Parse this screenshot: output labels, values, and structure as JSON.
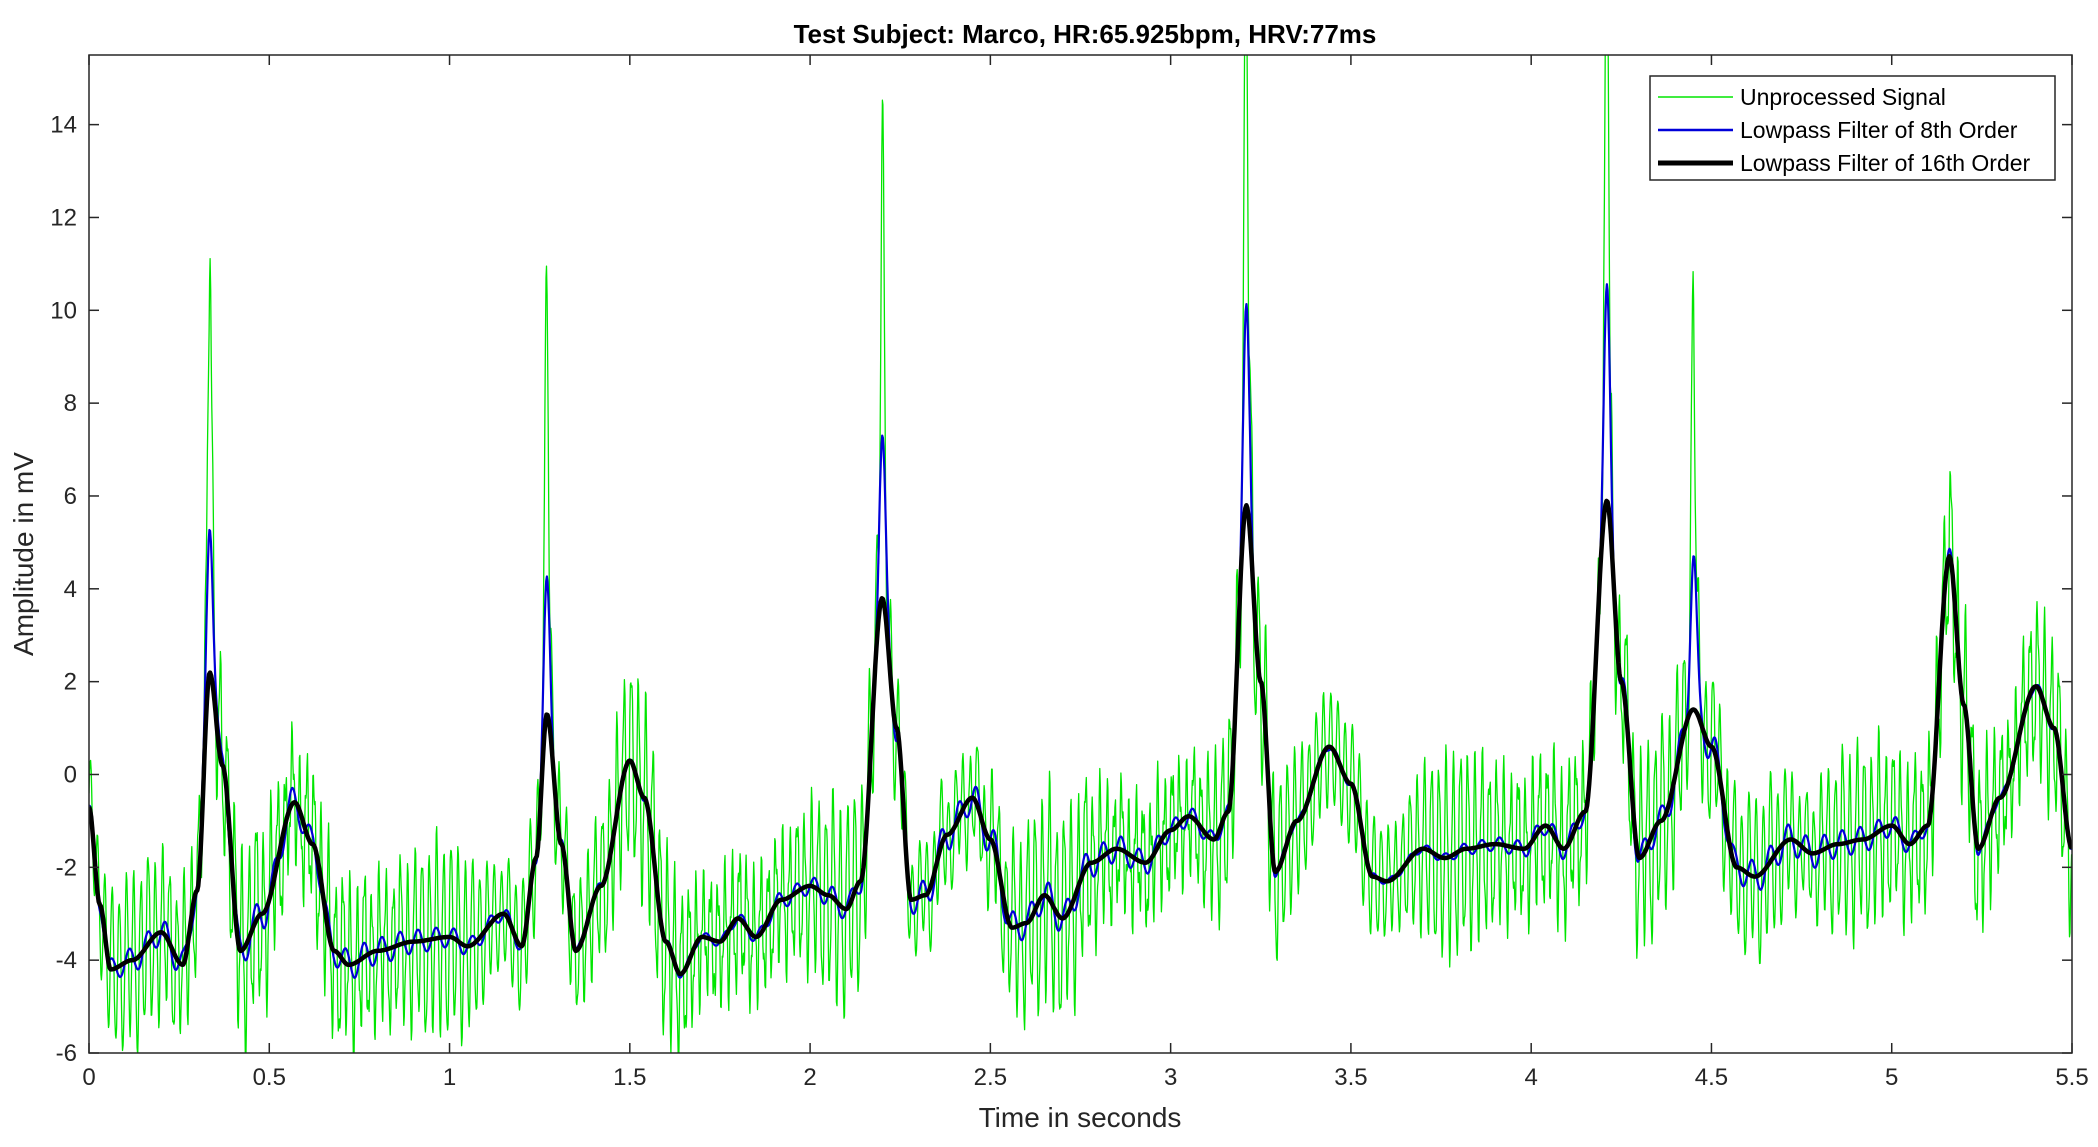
{
  "chart_data": {
    "type": "line",
    "title": "Test Subject: Marco, HR:65.925bpm, HRV:77ms",
    "xlabel": "Time in seconds",
    "ylabel": "Amplitude in mV",
    "xlim": [
      0,
      5.5
    ],
    "ylim": [
      -6,
      15.5
    ],
    "xticks": [
      0,
      0.5,
      1,
      1.5,
      2,
      2.5,
      3,
      3.5,
      4,
      4.5,
      5,
      5.5
    ],
    "xtick_labels": [
      "0",
      "0.5",
      "1",
      "1.5",
      "2",
      "2.5",
      "3",
      "3.5",
      "4",
      "4.5",
      "5",
      "5.5"
    ],
    "yticks": [
      -6,
      -4,
      -2,
      0,
      2,
      4,
      6,
      8,
      10,
      12,
      14
    ],
    "ytick_labels": [
      "-6",
      "-4",
      "-2",
      "0",
      "2",
      "4",
      "6",
      "8",
      "10",
      "12",
      "14"
    ],
    "grid": false,
    "legend_position": "top-right",
    "series": [
      {
        "name": "Unprocessed Signal",
        "color": "#00e600",
        "style": "thin",
        "noise_amplitude_mV": 1.8,
        "noise_frequency_hz": 50,
        "r_peak_extra_mV": [
          7.0,
          6.9,
          6.4,
          8.0,
          9.6,
          6.1
        ]
      },
      {
        "name": "Lowpass Filter of 8th Order",
        "color": "#0000d9",
        "style": "medium",
        "r_peak_extra_mV": [
          3.4,
          2.9,
          3.5,
          4.2,
          4.4,
          3.3
        ],
        "ripple_amplitude_mV": 0.35,
        "ripple_frequency_hz": 20
      },
      {
        "name": "Lowpass Filter of 16th Order",
        "color": "#000000",
        "style": "thick",
        "points": [
          [
            0.0,
            -0.7
          ],
          [
            0.03,
            -2.8
          ],
          [
            0.06,
            -4.2
          ],
          [
            0.12,
            -4.0
          ],
          [
            0.2,
            -3.4
          ],
          [
            0.26,
            -4.1
          ],
          [
            0.3,
            -2.5
          ],
          [
            0.335,
            2.2
          ],
          [
            0.37,
            0.2
          ],
          [
            0.42,
            -3.8
          ],
          [
            0.48,
            -3.0
          ],
          [
            0.57,
            -0.6
          ],
          [
            0.62,
            -1.5
          ],
          [
            0.68,
            -3.8
          ],
          [
            0.72,
            -4.1
          ],
          [
            0.8,
            -3.8
          ],
          [
            0.9,
            -3.6
          ],
          [
            1.0,
            -3.5
          ],
          [
            1.05,
            -3.7
          ],
          [
            1.15,
            -3.0
          ],
          [
            1.2,
            -3.7
          ],
          [
            1.24,
            -1.8
          ],
          [
            1.27,
            1.3
          ],
          [
            1.31,
            -1.5
          ],
          [
            1.35,
            -3.8
          ],
          [
            1.42,
            -2.4
          ],
          [
            1.5,
            0.3
          ],
          [
            1.54,
            -0.5
          ],
          [
            1.6,
            -3.6
          ],
          [
            1.64,
            -4.3
          ],
          [
            1.7,
            -3.5
          ],
          [
            1.75,
            -3.6
          ],
          [
            1.8,
            -3.1
          ],
          [
            1.85,
            -3.5
          ],
          [
            1.92,
            -2.7
          ],
          [
            2.0,
            -2.4
          ],
          [
            2.05,
            -2.6
          ],
          [
            2.1,
            -2.9
          ],
          [
            2.14,
            -2.3
          ],
          [
            2.2,
            3.8
          ],
          [
            2.24,
            1.0
          ],
          [
            2.28,
            -2.7
          ],
          [
            2.32,
            -2.6
          ],
          [
            2.38,
            -1.3
          ],
          [
            2.45,
            -0.5
          ],
          [
            2.5,
            -1.4
          ],
          [
            2.56,
            -3.3
          ],
          [
            2.6,
            -3.2
          ],
          [
            2.65,
            -2.6
          ],
          [
            2.7,
            -3.1
          ],
          [
            2.78,
            -1.9
          ],
          [
            2.85,
            -1.6
          ],
          [
            2.93,
            -1.9
          ],
          [
            3.0,
            -1.2
          ],
          [
            3.05,
            -0.9
          ],
          [
            3.12,
            -1.4
          ],
          [
            3.16,
            -0.8
          ],
          [
            3.21,
            5.8
          ],
          [
            3.25,
            2.0
          ],
          [
            3.29,
            -2.1
          ],
          [
            3.35,
            -1.0
          ],
          [
            3.44,
            0.6
          ],
          [
            3.5,
            -0.2
          ],
          [
            3.56,
            -2.2
          ],
          [
            3.6,
            -2.3
          ],
          [
            3.7,
            -1.6
          ],
          [
            3.76,
            -1.8
          ],
          [
            3.82,
            -1.6
          ],
          [
            3.9,
            -1.5
          ],
          [
            3.98,
            -1.6
          ],
          [
            4.04,
            -1.1
          ],
          [
            4.09,
            -1.6
          ],
          [
            4.15,
            -0.8
          ],
          [
            4.21,
            5.9
          ],
          [
            4.25,
            2.0
          ],
          [
            4.3,
            -1.8
          ],
          [
            4.36,
            -1.0
          ],
          [
            4.45,
            1.4
          ],
          [
            4.5,
            0.6
          ],
          [
            4.57,
            -2.0
          ],
          [
            4.62,
            -2.2
          ],
          [
            4.72,
            -1.4
          ],
          [
            4.78,
            -1.7
          ],
          [
            4.85,
            -1.5
          ],
          [
            4.92,
            -1.4
          ],
          [
            5.0,
            -1.1
          ],
          [
            5.05,
            -1.5
          ],
          [
            5.1,
            -1.1
          ],
          [
            5.16,
            4.7
          ],
          [
            5.2,
            1.5
          ],
          [
            5.24,
            -1.6
          ],
          [
            5.3,
            -0.5
          ],
          [
            5.4,
            1.9
          ],
          [
            5.45,
            1.0
          ],
          [
            5.5,
            -1.6
          ]
        ]
      }
    ]
  }
}
